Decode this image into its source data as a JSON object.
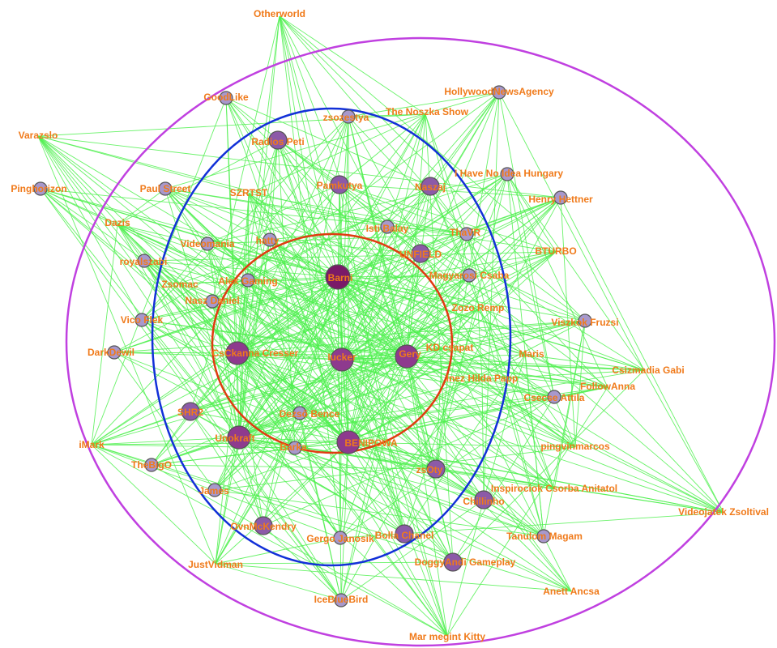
{
  "colors": {
    "edge": "#4ff04f",
    "label": "#f07a1a",
    "node_small": "#a898cc",
    "node_mid": "#8c5aa8",
    "node_big": "#8e3a8e",
    "node_core": "#7a1a68",
    "ring_outer": "#c040e0",
    "ring_middle": "#1230d8",
    "ring_inner": "#e03c10"
  },
  "nodes": [
    {
      "id": "Barni",
      "label": "Barni",
      "level": "core"
    },
    {
      "id": "Iucker",
      "label": "Iucker",
      "level": "big"
    },
    {
      "id": "Gery",
      "label": "Gery",
      "level": "big"
    },
    {
      "id": "CsCkanna",
      "label": "CsCkanna Cresser",
      "level": "big"
    },
    {
      "id": "Unokraft",
      "label": "Unokraft",
      "level": "big"
    },
    {
      "id": "BENIPOWA",
      "label": "BENIPOWA",
      "level": "big"
    },
    {
      "id": "Dezs",
      "label": "Dezső Bence",
      "level": "small"
    },
    {
      "id": "Barka",
      "label": "Barka",
      "level": "small"
    },
    {
      "id": "Otherworld",
      "label": "Otherworld",
      "level": "none"
    },
    {
      "id": "HollywoodNewsAgency",
      "label": "HollywoodNewsAgency",
      "level": "small"
    },
    {
      "id": "zsozestya",
      "label": "zsozestya",
      "level": "small"
    },
    {
      "id": "Noszka",
      "label": "The  Noszka Show",
      "level": "none"
    },
    {
      "id": "GoodLike",
      "label": "GoodLike",
      "level": "small"
    },
    {
      "id": "Varazslo",
      "label": "Varazslo",
      "level": "none"
    },
    {
      "id": "RadiosPeti",
      "label": "Radios Peti",
      "level": "mid"
    },
    {
      "id": "IHave",
      "label": "I Have No Idea Hungary",
      "level": "small"
    },
    {
      "id": "Pinghorizon",
      "label": "Pinghorizon",
      "level": "small"
    },
    {
      "id": "PaulStreet",
      "label": "Paul Street",
      "level": "small"
    },
    {
      "id": "SZRTST",
      "label": "SZRTST",
      "level": "none"
    },
    {
      "id": "Pamkutya",
      "label": "Pamkutya",
      "level": "mid"
    },
    {
      "id": "Naszaj",
      "label": "Naszaj",
      "level": "mid"
    },
    {
      "id": "HenryHettner",
      "label": "Henry Hettner",
      "level": "small"
    },
    {
      "id": "Dazis",
      "label": "Dazis",
      "level": "none"
    },
    {
      "id": "IstiBalay",
      "label": "Isti Balay",
      "level": "small"
    },
    {
      "id": "ThaVR",
      "label": "ThaVR",
      "level": "small"
    },
    {
      "id": "Videomania",
      "label": "Videomania",
      "level": "small"
    },
    {
      "id": "hatty",
      "label": "hatty",
      "level": "small"
    },
    {
      "id": "UNFIELD",
      "label": "UNFIELD",
      "level": "mid"
    },
    {
      "id": "BTURBO",
      "label": "BTURBO",
      "level": "none"
    },
    {
      "id": "royalszabi",
      "label": "royalszabi",
      "level": "small"
    },
    {
      "id": "Zsomac",
      "label": "Zsomac",
      "level": "none"
    },
    {
      "id": "AlexGaming",
      "label": "Alex Gaming",
      "level": "small"
    },
    {
      "id": "MagyarosiCsaba",
      "label": "Magyarosi Csaba",
      "level": "small"
    },
    {
      "id": "NaszDaniel",
      "label": "Nasz Daniel",
      "level": "small"
    },
    {
      "id": "ZozoRemp",
      "label": "Zozo Remp",
      "level": "none"
    },
    {
      "id": "VicoFlek",
      "label": "Vico Flek",
      "level": "small"
    },
    {
      "id": "ViszkokFruzsi",
      "label": "Viszkok Fruzsi",
      "level": "small"
    },
    {
      "id": "KDcsapat",
      "label": "KD csapat",
      "level": "none"
    },
    {
      "id": "Maris",
      "label": "Maris",
      "level": "none"
    },
    {
      "id": "DarkDewil",
      "label": "DarkDewil",
      "level": "small"
    },
    {
      "id": "CsizmadiaGabi",
      "label": "Csizmadia Gabi",
      "level": "none"
    },
    {
      "id": "InezHilda",
      "label": "Inez Hilda Papp",
      "level": "none"
    },
    {
      "id": "FollowAnna",
      "label": "FollowAnna",
      "level": "none"
    },
    {
      "id": "CsecseAttila",
      "label": "Csecse Attila",
      "level": "small"
    },
    {
      "id": "SHR2",
      "label": "SHR2",
      "level": "mid"
    },
    {
      "id": "iMark",
      "label": "iMark",
      "level": "none"
    },
    {
      "id": "pingvinmarcos",
      "label": "pingvinmarcos",
      "level": "none"
    },
    {
      "id": "TheBigO",
      "label": "TheBigO",
      "level": "small"
    },
    {
      "id": "zsOty",
      "label": "zsOty",
      "level": "mid"
    },
    {
      "id": "Inspirociok",
      "label": "Inspirociok Csorba Anitatol",
      "level": "none"
    },
    {
      "id": "James",
      "label": "James",
      "level": "small"
    },
    {
      "id": "VideojatekZsoltival",
      "label": "Videojatek Zsoltival",
      "level": "none"
    },
    {
      "id": "OvnMcKendry",
      "label": "OvnMcKendry",
      "level": "mid"
    },
    {
      "id": "Chillinho",
      "label": "Chillinho",
      "level": "mid"
    },
    {
      "id": "GergoJanosik",
      "label": "Gergo Janosik",
      "level": "small"
    },
    {
      "id": "BollaChanel",
      "label": "Bolla Chanel",
      "level": "mid"
    },
    {
      "id": "TanulomMagam",
      "label": "Tanulom Magam",
      "level": "small"
    },
    {
      "id": "JustVidman",
      "label": "JustVidman",
      "level": "none"
    },
    {
      "id": "DoggyAndi",
      "label": "DoggyAndi Gameplay",
      "level": "mid"
    },
    {
      "id": "AnettAncsa",
      "label": "Anett Ancsa",
      "level": "none"
    },
    {
      "id": "IceBlueBird",
      "label": "IceBlueBird",
      "level": "small"
    },
    {
      "id": "MarMegint",
      "label": "Mar megint Kitty",
      "level": "none"
    }
  ]
}
